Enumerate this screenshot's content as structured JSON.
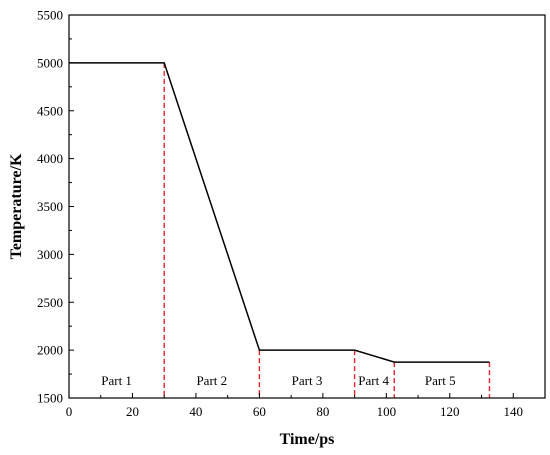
{
  "chart_data": {
    "type": "line",
    "title": "",
    "xlabel": "Time/ps",
    "ylabel": "Temperature/K",
    "xlim": [
      0,
      150
    ],
    "ylim": [
      1500,
      5500
    ],
    "xticks": [
      0,
      20,
      40,
      60,
      80,
      100,
      120,
      140
    ],
    "yticks": [
      1500,
      2000,
      2500,
      3000,
      3500,
      4000,
      4500,
      5000,
      5500
    ],
    "grid": false,
    "series": [
      {
        "x": [
          0,
          30,
          60,
          90,
          102.5,
          132.5
        ],
        "y": [
          5000,
          5000,
          2000,
          2000,
          1875,
          1875
        ],
        "color": "#000000"
      }
    ],
    "boundaries": {
      "x": [
        30,
        60,
        90,
        102.5,
        132.5
      ],
      "color": "#e8242a",
      "style": "dashed"
    },
    "part_labels": [
      {
        "text": "Part 1",
        "x": 15
      },
      {
        "text": "Part 2",
        "x": 45
      },
      {
        "text": "Part 3",
        "x": 75
      },
      {
        "text": "Part 4",
        "x": 96
      },
      {
        "text": "Part 5",
        "x": 117
      }
    ]
  }
}
